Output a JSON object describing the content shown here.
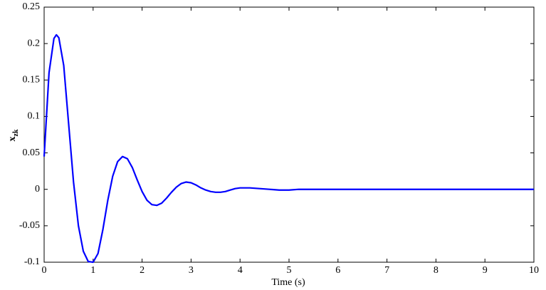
{
  "chart_data": {
    "type": "line",
    "xlabel": "Time (s)",
    "ylabel": "x",
    "ylabel_sub": "zk",
    "x": [
      0,
      0.1,
      0.2,
      0.25,
      0.3,
      0.4,
      0.5,
      0.6,
      0.7,
      0.8,
      0.9,
      1.0,
      1.1,
      1.2,
      1.3,
      1.4,
      1.5,
      1.6,
      1.7,
      1.8,
      1.9,
      2.0,
      2.1,
      2.2,
      2.3,
      2.4,
      2.5,
      2.6,
      2.7,
      2.8,
      2.9,
      3.0,
      3.1,
      3.2,
      3.3,
      3.4,
      3.5,
      3.6,
      3.7,
      3.8,
      3.9,
      4.0,
      4.2,
      4.4,
      4.6,
      4.8,
      5.0,
      5.2,
      6,
      8,
      10
    ],
    "series": [
      {
        "color": "#0000ff",
        "values": [
          0.045,
          0.16,
          0.207,
          0.212,
          0.208,
          0.17,
          0.09,
          0.01,
          -0.05,
          -0.085,
          -0.099,
          -0.1,
          -0.088,
          -0.055,
          -0.015,
          0.018,
          0.038,
          0.045,
          0.042,
          0.03,
          0.013,
          -0.003,
          -0.015,
          -0.021,
          -0.022,
          -0.019,
          -0.012,
          -0.004,
          0.003,
          0.008,
          0.01,
          0.009,
          0.006,
          0.002,
          -0.001,
          -0.003,
          -0.004,
          -0.004,
          -0.003,
          -0.001,
          0.001,
          0.002,
          0.002,
          0.001,
          0,
          -0.001,
          -0.001,
          0,
          0,
          0,
          0
        ]
      }
    ],
    "xlim": [
      0,
      10
    ],
    "xticks": [
      0,
      1,
      2,
      3,
      4,
      5,
      6,
      7,
      8,
      9,
      10
    ],
    "ylim": [
      -0.1,
      0.25
    ],
    "yticks": [
      -0.1,
      -0.05,
      0,
      0.05,
      0.1,
      0.15,
      0.2,
      0.25
    ]
  }
}
